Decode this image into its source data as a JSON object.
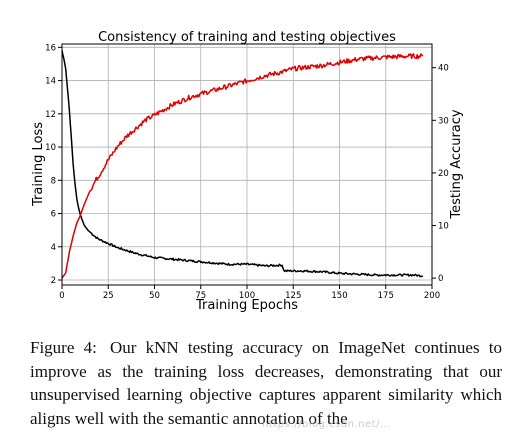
{
  "figure": {
    "caption_label": "Figure 4:",
    "caption_text": "Our kNN testing accuracy on ImageNet continues to improve as the training loss decreases, demonstrating that our unsupervised learning objective captures apparent similarity which aligns well with the semantic annotation of the"
  },
  "watermark": "https://blog.csdn.net/...",
  "chart_data": {
    "type": "line",
    "title": "Consistency of training and testing objectives",
    "xlabel": "Training Epochs",
    "ylabel": "Training Loss",
    "y2label": "Testing Accuracy",
    "xlim": [
      0,
      200
    ],
    "ylim": [
      1.7,
      16.2
    ],
    "y2lim": [
      -1.3,
      44.5
    ],
    "xticks": [
      0,
      25,
      50,
      75,
      100,
      125,
      150,
      175,
      200
    ],
    "yticks": [
      2,
      4,
      6,
      8,
      10,
      12,
      14,
      16
    ],
    "y2ticks": [
      0,
      10,
      20,
      30,
      40
    ],
    "grid": true,
    "series": [
      {
        "name": "",
        "axis": "left",
        "color": "#000000",
        "x": [
          0,
          1,
          2,
          3,
          4,
          5,
          6,
          7,
          8,
          9,
          10,
          12,
          14,
          16,
          18,
          20,
          25,
          30,
          40,
          50,
          60,
          70,
          80,
          90,
          100,
          110,
          119,
          120,
          130,
          140,
          150,
          160,
          170,
          180,
          190,
          195
        ],
        "y": [
          15.8,
          15.3,
          14.7,
          13.5,
          12.2,
          10.6,
          9.0,
          7.8,
          6.9,
          6.3,
          5.9,
          5.3,
          5.0,
          4.8,
          4.6,
          4.45,
          4.2,
          3.95,
          3.6,
          3.35,
          3.25,
          3.15,
          3.05,
          2.95,
          2.95,
          2.85,
          2.9,
          2.55,
          2.55,
          2.5,
          2.4,
          2.35,
          2.3,
          2.3,
          2.3,
          2.25
        ]
      },
      {
        "name": "",
        "axis": "right",
        "color": "#e00000",
        "x": [
          0,
          2,
          4,
          6,
          8,
          10,
          12,
          15,
          18,
          20,
          25,
          30,
          35,
          40,
          45,
          50,
          55,
          60,
          70,
          80,
          90,
          100,
          110,
          119,
          120,
          125,
          130,
          140,
          150,
          160,
          170,
          180,
          190,
          195
        ],
        "y": [
          0,
          1,
          5,
          8,
          10.5,
          12,
          14,
          16.5,
          18.5,
          19.5,
          22.5,
          25,
          27,
          28.5,
          30,
          31,
          32,
          33,
          34.5,
          35.5,
          36.5,
          37.5,
          38.5,
          39.2,
          39.3,
          39.8,
          40.0,
          40.4,
          41.0,
          41.6,
          41.9,
          42.1,
          42.2,
          42.2
        ]
      }
    ]
  }
}
